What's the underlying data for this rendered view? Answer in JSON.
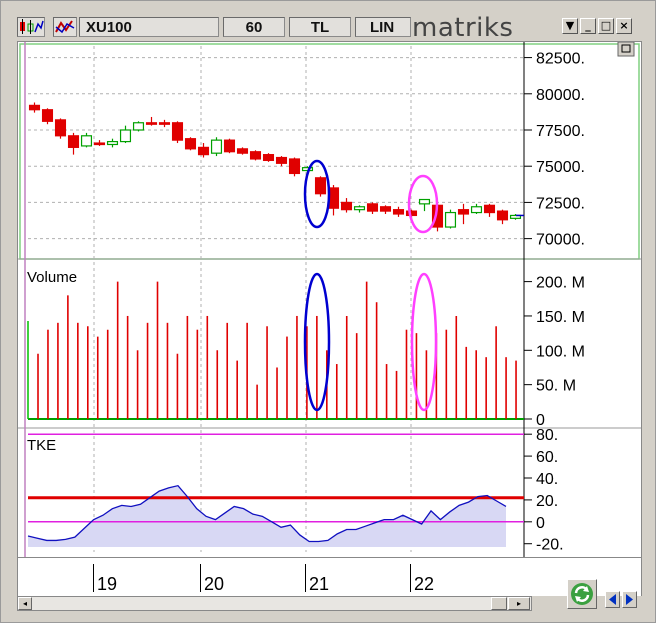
{
  "toolbar": {
    "symbol": "XU100",
    "period": "60",
    "currency": "TL",
    "scale": "LIN",
    "brand": "matriks",
    "menu_icon": "dropdown-arrow-icon",
    "min_icon": "minimize-icon",
    "max_icon": "maximize-icon",
    "close_icon": "close-icon"
  },
  "colors": {
    "up": "#00a000",
    "down": "#e00000",
    "volume": "#e00000",
    "tke_line": "#1010c0",
    "tke_fill": "#d8d8f4",
    "tke_ref_upper": "#e00000",
    "tke_ref_lower": "#e020e0",
    "highlight_blue": "#0000d0",
    "highlight_pink": "#ff40ff"
  },
  "chart_data": [
    {
      "type": "candlestick",
      "title": "",
      "price_axis_ticks": [
        "82500.",
        "80000.",
        "77500.",
        "75000.",
        "72500.",
        "70000."
      ],
      "ylim": [
        68800,
        83300
      ],
      "candles": [
        {
          "o": 79200,
          "h": 79400,
          "l": 78700,
          "c": 78900
        },
        {
          "o": 78900,
          "h": 79000,
          "l": 77900,
          "c": 78100
        },
        {
          "o": 78200,
          "h": 78300,
          "l": 76900,
          "c": 77100
        },
        {
          "o": 77100,
          "h": 77300,
          "l": 75800,
          "c": 76300
        },
        {
          "o": 76400,
          "h": 77300,
          "l": 76300,
          "c": 77100
        },
        {
          "o": 76600,
          "h": 76800,
          "l": 76400,
          "c": 76500
        },
        {
          "o": 76500,
          "h": 76900,
          "l": 76300,
          "c": 76700
        },
        {
          "o": 76700,
          "h": 77800,
          "l": 76600,
          "c": 77500
        },
        {
          "o": 77500,
          "h": 78100,
          "l": 77400,
          "c": 78000
        },
        {
          "o": 78000,
          "h": 78400,
          "l": 77800,
          "c": 77900
        },
        {
          "o": 78000,
          "h": 78200,
          "l": 77700,
          "c": 77900
        },
        {
          "o": 78000,
          "h": 78100,
          "l": 76600,
          "c": 76800
        },
        {
          "o": 76900,
          "h": 77000,
          "l": 76100,
          "c": 76200
        },
        {
          "o": 76300,
          "h": 76600,
          "l": 75600,
          "c": 75800
        },
        {
          "o": 75900,
          "h": 77000,
          "l": 75700,
          "c": 76800
        },
        {
          "o": 76800,
          "h": 76900,
          "l": 75900,
          "c": 76000
        },
        {
          "o": 76200,
          "h": 76300,
          "l": 75800,
          "c": 75900
        },
        {
          "o": 76000,
          "h": 76100,
          "l": 75400,
          "c": 75500
        },
        {
          "o": 75800,
          "h": 75900,
          "l": 75300,
          "c": 75400
        },
        {
          "o": 75600,
          "h": 75700,
          "l": 75000,
          "c": 75200
        },
        {
          "o": 75500,
          "h": 75600,
          "l": 74300,
          "c": 74500
        },
        {
          "o": 74700,
          "h": 75000,
          "l": 74500,
          "c": 74900
        },
        {
          "o": 74200,
          "h": 74300,
          "l": 72900,
          "c": 73100
        },
        {
          "o": 73500,
          "h": 73700,
          "l": 71600,
          "c": 72100
        },
        {
          "o": 72500,
          "h": 72800,
          "l": 71800,
          "c": 72000
        },
        {
          "o": 72000,
          "h": 72300,
          "l": 71800,
          "c": 72200
        },
        {
          "o": 72400,
          "h": 72500,
          "l": 71700,
          "c": 71900
        },
        {
          "o": 72200,
          "h": 72300,
          "l": 71700,
          "c": 71900
        },
        {
          "o": 72000,
          "h": 72200,
          "l": 71500,
          "c": 71700
        },
        {
          "o": 71900,
          "h": 72000,
          "l": 71300,
          "c": 71600
        },
        {
          "o": 72400,
          "h": 72600,
          "l": 71900,
          "c": 72700
        },
        {
          "o": 72300,
          "h": 72400,
          "l": 70500,
          "c": 70800
        },
        {
          "o": 70800,
          "h": 72000,
          "l": 70700,
          "c": 71800
        },
        {
          "o": 72000,
          "h": 72400,
          "l": 71000,
          "c": 71700
        },
        {
          "o": 71800,
          "h": 72400,
          "l": 71700,
          "c": 72200
        },
        {
          "o": 72300,
          "h": 72400,
          "l": 71500,
          "c": 71800
        },
        {
          "o": 71900,
          "h": 72000,
          "l": 71000,
          "c": 71300
        },
        {
          "o": 71400,
          "h": 71700,
          "l": 71300,
          "c": 71600
        }
      ]
    },
    {
      "type": "bar",
      "title": "Volume",
      "axis_ticks": [
        "200. M",
        "150. M",
        "100. M",
        "50. M",
        "0"
      ],
      "ylim": [
        0,
        230
      ],
      "values": [
        95,
        130,
        140,
        180,
        140,
        135,
        120,
        130,
        200,
        150,
        100,
        140,
        200,
        140,
        95,
        150,
        130,
        150,
        100,
        140,
        85,
        140,
        50,
        135,
        75,
        120,
        150,
        135,
        150,
        100,
        80,
        150,
        125,
        200,
        170,
        80,
        70,
        130,
        125,
        100,
        125,
        130,
        150,
        105,
        100,
        90,
        135,
        90,
        85
      ]
    },
    {
      "type": "line",
      "title": "TKE",
      "axis_ticks": [
        "80.",
        "60.",
        "40.",
        "20.",
        "0",
        "-20."
      ],
      "ylim": [
        -23,
        82
      ],
      "reference_lines": [
        80,
        22,
        0
      ],
      "values": [
        -13,
        -15,
        -17,
        -17,
        -16,
        -14,
        -6,
        2,
        6,
        12,
        15,
        14,
        16,
        22,
        28,
        31,
        33,
        23,
        12,
        5,
        2,
        8,
        14,
        12,
        7,
        5,
        0,
        -5,
        -3,
        -12,
        -18,
        -18,
        -17,
        -11,
        -7,
        -7,
        -4,
        -1,
        2,
        2,
        6,
        2,
        -2,
        10,
        2,
        9,
        15,
        18,
        23,
        24,
        19,
        14
      ]
    }
  ],
  "x_axis": {
    "labels": [
      "19",
      "20",
      "21",
      "22"
    ]
  }
}
